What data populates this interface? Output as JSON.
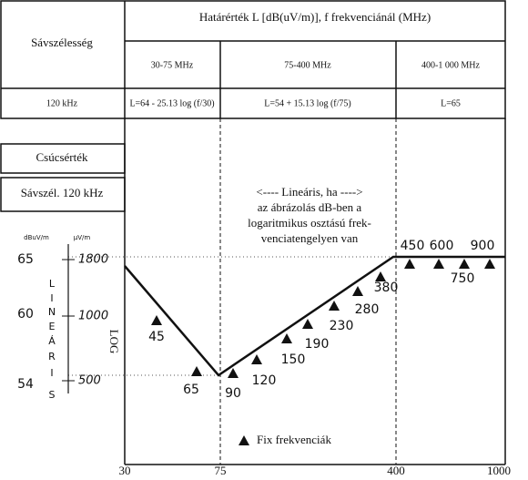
{
  "table": {
    "header": {
      "bandwidth": "Sávszélesség",
      "limit": "Határérték L [dB(uV/m)], f frekvenciánál (MHz)"
    },
    "ranges": [
      "30-75 MHz",
      "75-400 MHz",
      "400-1 000 MHz"
    ],
    "row": {
      "bandwidth": "120 kHz",
      "formulas": [
        "L=64 - 25.13 log (f/30)",
        "L=54 + 15.13 log (f/75)",
        "L=65"
      ]
    }
  },
  "detector": {
    "peak": "Csúcsérték",
    "bandwidth": "Sávszél. 120 kHz"
  },
  "scale": {
    "db_unit": "dBuV/m",
    "uv_unit": "μV/m",
    "db_labels": [
      "65",
      "60",
      "54"
    ],
    "uv_labels": [
      "1800",
      "1000",
      "500"
    ],
    "linear_letters": [
      "L",
      "I",
      "N",
      "E",
      "Á",
      "R",
      "I",
      "S"
    ],
    "log_label": "LOG"
  },
  "annotation": [
    "<----  Lineáris, ha  ---->",
    "az ábrázolás dB-ben a",
    "logaritmikus osztású frek-",
    "venciatengelyen van"
  ],
  "fixed_frequencies": [
    "45",
    "65",
    "90",
    "120",
    "150",
    "190",
    "230",
    "280",
    "380",
    "450",
    "600",
    "750",
    "900"
  ],
  "legend": "Fix frekvenciák",
  "x_axis": [
    "30",
    "75",
    "400",
    "1000"
  ]
}
